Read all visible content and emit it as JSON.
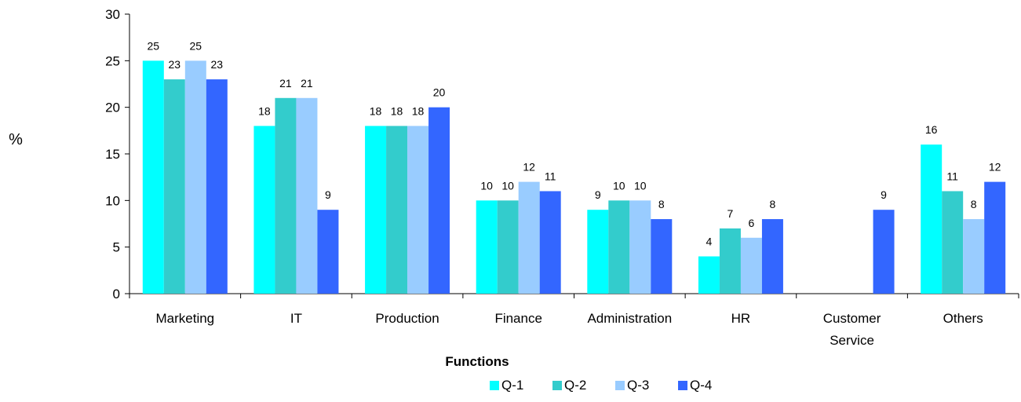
{
  "chart_data": {
    "type": "bar",
    "xlabel": "Functions",
    "ylabel": "%",
    "ylim": [
      0,
      30
    ],
    "yticks": [
      0,
      5,
      10,
      15,
      20,
      25,
      30
    ],
    "grid": false,
    "legend_position": "bottom",
    "categories": [
      [
        "Marketing"
      ],
      [
        "IT"
      ],
      [
        "Production"
      ],
      [
        "Finance"
      ],
      [
        "Administration"
      ],
      [
        "HR"
      ],
      [
        "Customer",
        "Service"
      ],
      [
        "Others"
      ]
    ],
    "series": [
      {
        "name": "Q-1",
        "color": "#00ffff",
        "values": [
          25,
          18,
          18,
          10,
          9,
          4,
          null,
          16
        ]
      },
      {
        "name": "Q-2",
        "color": "#33cccc",
        "values": [
          23,
          21,
          18,
          10,
          10,
          7,
          null,
          11
        ]
      },
      {
        "name": "Q-3",
        "color": "#99ccff",
        "values": [
          25,
          21,
          18,
          12,
          10,
          6,
          null,
          8
        ]
      },
      {
        "name": "Q-4",
        "color": "#3366ff",
        "values": [
          23,
          9,
          20,
          11,
          8,
          8,
          9,
          12
        ]
      }
    ]
  }
}
